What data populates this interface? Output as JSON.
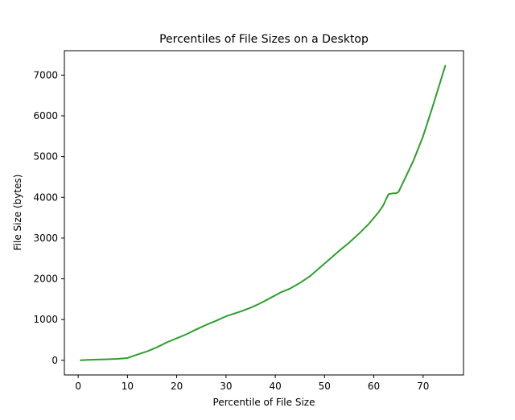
{
  "chart_data": {
    "type": "line",
    "title": "Percentiles of File Sizes on a Desktop",
    "xlabel": "Percentile of File Size",
    "ylabel": "File Size (bytes)",
    "xlim": [
      -2.8,
      78.2
    ],
    "ylim": [
      -360,
      7600
    ],
    "xticks": [
      0,
      10,
      20,
      30,
      40,
      50,
      60,
      70
    ],
    "xtick_labels": [
      "0",
      "10",
      "20",
      "30",
      "40",
      "50",
      "60",
      "70"
    ],
    "yticks": [
      0,
      1000,
      2000,
      3000,
      4000,
      5000,
      6000,
      7000
    ],
    "ytick_labels": [
      "0",
      "1000",
      "2000",
      "3000",
      "4000",
      "5000",
      "6000",
      "7000"
    ],
    "grid": false,
    "series": [
      {
        "color": "#2ca02c",
        "x": [
          0.5,
          2,
          4,
          6,
          8,
          10,
          12,
          14,
          16,
          18,
          20,
          22,
          24,
          26,
          28,
          30,
          32,
          33,
          35,
          37,
          39,
          41,
          43,
          45,
          47,
          49,
          51,
          53,
          55,
          57,
          59,
          61,
          62,
          62.5,
          63,
          64,
          64.5,
          65,
          66,
          68,
          70,
          72,
          74.5
        ],
        "y": [
          0,
          10,
          18,
          25,
          35,
          55,
          140,
          220,
          320,
          440,
          540,
          640,
          760,
          870,
          970,
          1080,
          1160,
          1200,
          1290,
          1400,
          1530,
          1660,
          1760,
          1900,
          2060,
          2270,
          2480,
          2690,
          2890,
          3110,
          3350,
          3640,
          3820,
          3960,
          4080,
          4100,
          4100,
          4130,
          4380,
          4890,
          5500,
          6250,
          7230
        ]
      }
    ]
  }
}
